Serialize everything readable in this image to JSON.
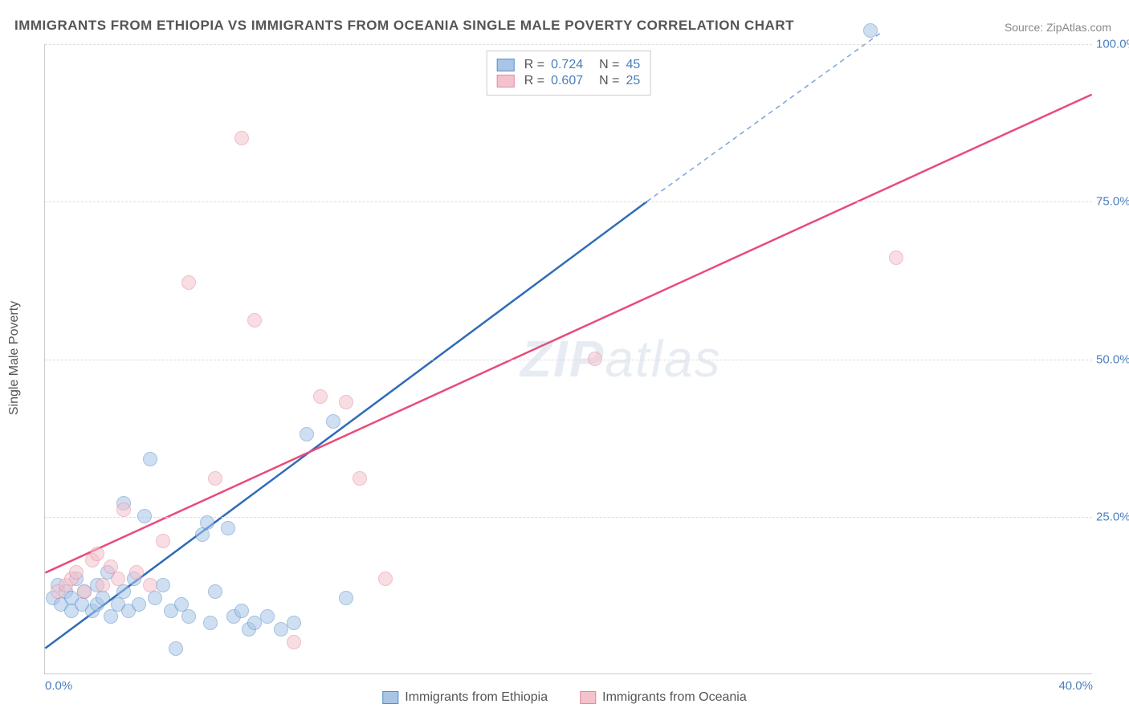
{
  "title": "IMMIGRANTS FROM ETHIOPIA VS IMMIGRANTS FROM OCEANIA SINGLE MALE POVERTY CORRELATION CHART",
  "source_label": "Source: ",
  "source_site": "ZipAtlas.com",
  "watermark": "ZIPatlas",
  "chart": {
    "type": "scatter",
    "xlim": [
      0,
      40
    ],
    "ylim": [
      0,
      100
    ],
    "xticks": [
      0,
      40
    ],
    "xtick_labels": [
      "0.0%",
      "40.0%"
    ],
    "yticks": [
      25,
      50,
      75,
      100
    ],
    "ytick_labels": [
      "25.0%",
      "50.0%",
      "75.0%",
      "100.0%"
    ],
    "ylabel": "Single Male Poverty",
    "background_color": "#ffffff",
    "grid_color": "#dddddd",
    "axis_color": "#cccccc",
    "tick_label_color": "#4a7ebb",
    "point_radius": 9,
    "point_opacity": 0.55,
    "series": [
      {
        "name": "Immigrants from Ethiopia",
        "fill_color": "#a8c5e8",
        "stroke_color": "#5b8fc9",
        "line_color": "#2e6bb8",
        "line_width": 2.5,
        "dash_color": "#7aa5d5",
        "R": "0.724",
        "N": "45",
        "trend": {
          "x1": 0,
          "y1": 4,
          "x2": 23,
          "y2": 75,
          "x2_dash": 32,
          "y2_dash": 102
        },
        "points": [
          [
            0.3,
            12
          ],
          [
            0.5,
            14
          ],
          [
            0.6,
            11
          ],
          [
            0.8,
            13
          ],
          [
            1.0,
            12
          ],
          [
            1.0,
            10
          ],
          [
            1.2,
            15
          ],
          [
            1.4,
            11
          ],
          [
            1.5,
            13
          ],
          [
            1.8,
            10
          ],
          [
            2.0,
            14
          ],
          [
            2.0,
            11
          ],
          [
            2.2,
            12
          ],
          [
            2.4,
            16
          ],
          [
            2.5,
            9
          ],
          [
            2.8,
            11
          ],
          [
            3.0,
            13
          ],
          [
            3.0,
            27
          ],
          [
            3.2,
            10
          ],
          [
            3.4,
            15
          ],
          [
            3.6,
            11
          ],
          [
            3.8,
            25
          ],
          [
            4.0,
            34
          ],
          [
            4.2,
            12
          ],
          [
            4.5,
            14
          ],
          [
            4.8,
            10
          ],
          [
            5.0,
            4
          ],
          [
            5.2,
            11
          ],
          [
            5.5,
            9
          ],
          [
            6.0,
            22
          ],
          [
            6.2,
            24
          ],
          [
            6.3,
            8
          ],
          [
            6.5,
            13
          ],
          [
            7.0,
            23
          ],
          [
            7.2,
            9
          ],
          [
            7.5,
            10
          ],
          [
            7.8,
            7
          ],
          [
            8.0,
            8
          ],
          [
            8.5,
            9
          ],
          [
            9.0,
            7
          ],
          [
            9.5,
            8
          ],
          [
            10.0,
            38
          ],
          [
            11.0,
            40
          ],
          [
            11.5,
            12
          ],
          [
            31.5,
            102
          ]
        ]
      },
      {
        "name": "Immigrants from Oceania",
        "fill_color": "#f4c2cc",
        "stroke_color": "#e58aa0",
        "line_color": "#e94b7a",
        "line_width": 2.5,
        "R": "0.607",
        "N": "25",
        "trend": {
          "x1": 0,
          "y1": 16,
          "x2": 40,
          "y2": 92
        },
        "points": [
          [
            0.5,
            13
          ],
          [
            0.8,
            14
          ],
          [
            1.0,
            15
          ],
          [
            1.2,
            16
          ],
          [
            1.5,
            13
          ],
          [
            1.8,
            18
          ],
          [
            2.0,
            19
          ],
          [
            2.2,
            14
          ],
          [
            2.5,
            17
          ],
          [
            2.8,
            15
          ],
          [
            3.0,
            26
          ],
          [
            3.5,
            16
          ],
          [
            4.0,
            14
          ],
          [
            4.5,
            21
          ],
          [
            5.5,
            62
          ],
          [
            6.5,
            31
          ],
          [
            7.5,
            85
          ],
          [
            8.0,
            56
          ],
          [
            9.5,
            5
          ],
          [
            10.5,
            44
          ],
          [
            11.5,
            43
          ],
          [
            12.0,
            31
          ],
          [
            13.0,
            15
          ],
          [
            21.0,
            50
          ],
          [
            32.5,
            66
          ]
        ]
      }
    ],
    "legend_top": {
      "border_color": "#cccccc",
      "r_label": "R =",
      "n_label": "N ="
    },
    "legend_bottom": [
      {
        "label": "Immigrants from Ethiopia",
        "fill": "#a8c5e8",
        "stroke": "#5b8fc9"
      },
      {
        "label": "Immigrants from Oceania",
        "fill": "#f4c2cc",
        "stroke": "#e58aa0"
      }
    ]
  }
}
